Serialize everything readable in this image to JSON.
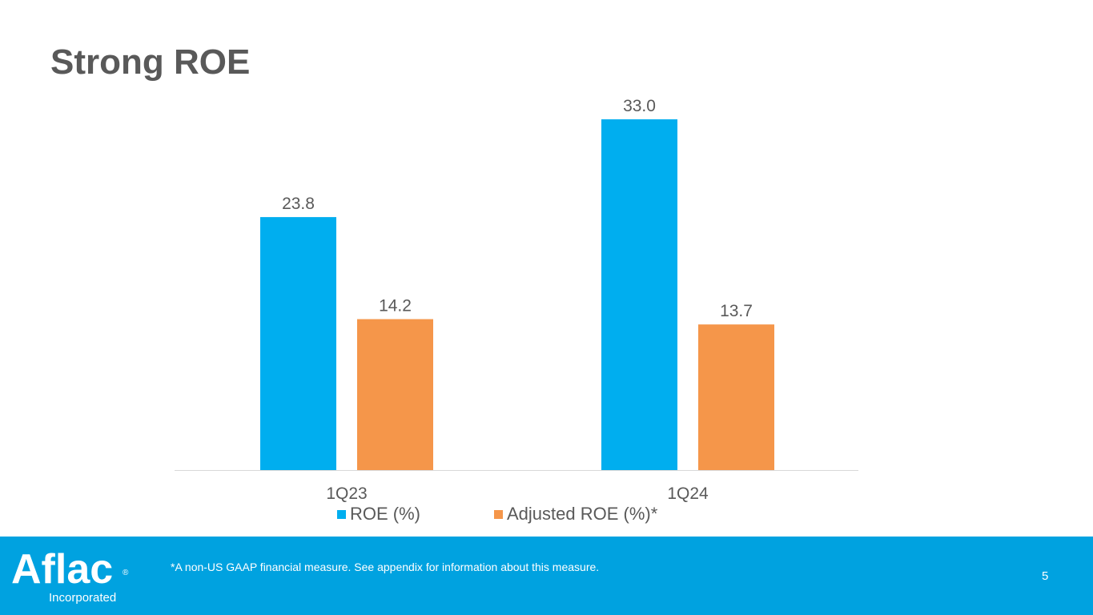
{
  "title": "Strong ROE",
  "colors": {
    "roe": "#00AEEF",
    "adjusted": "#F5964A",
    "footer": "#00A2E0",
    "text": "#595959"
  },
  "chart_data": {
    "type": "bar",
    "title": "Strong ROE",
    "categories": [
      "1Q23",
      "1Q24"
    ],
    "series": [
      {
        "name": "ROE (%)",
        "values": [
          23.8,
          33.0
        ],
        "labels": [
          "23.8",
          "33.0"
        ]
      },
      {
        "name": "Adjusted ROE (%)*",
        "values": [
          14.2,
          13.7
        ],
        "labels": [
          "14.2",
          "13.7"
        ]
      }
    ],
    "xlabel": "",
    "ylabel": "",
    "ylim": [
      0,
      35
    ],
    "grid": false,
    "legend_position": "bottom"
  },
  "legend": {
    "roe_label": "ROE (%)",
    "adjusted_label": "Adjusted ROE (%)*"
  },
  "footer": {
    "logo_text": "Aflac",
    "logo_registered": "®",
    "logo_subtitle": "Incorporated",
    "footnote": "*A non-US GAAP financial measure. See appendix for information about this measure.",
    "page_number": "5"
  }
}
